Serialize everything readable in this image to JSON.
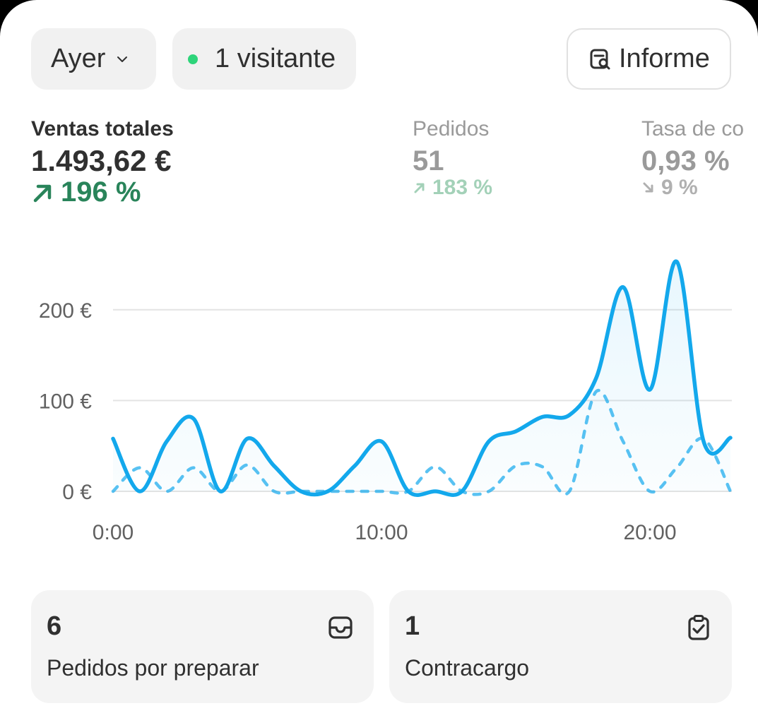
{
  "toolbar": {
    "date_filter_label": "Ayer",
    "visitors_label": "1 visitante",
    "report_label": "Informe"
  },
  "metrics": [
    {
      "label": "Ventas totales",
      "value": "1.493,62 €",
      "change": "196 %",
      "direction": "up"
    },
    {
      "label": "Pedidos",
      "value": "51",
      "change": "183 %",
      "direction": "up"
    },
    {
      "label": "Tasa de co",
      "value": "0,93 %",
      "change": "9 %",
      "direction": "down"
    }
  ],
  "colors": {
    "accent": "#13a8ec",
    "positive": "#29845a",
    "live_dot": "#2ed47a"
  },
  "chart_data": {
    "type": "line",
    "y_tick_labels": [
      "0 €",
      "100 €",
      "200 €"
    ],
    "yticks": [
      0,
      100,
      200
    ],
    "ylim": [
      0,
      260
    ],
    "x_tick_labels": [
      "0:00",
      "10:00",
      "20:00"
    ],
    "xticks": [
      0,
      10,
      20
    ],
    "xlim": [
      0,
      23
    ],
    "grid": true,
    "series": [
      {
        "style": "solid",
        "x": [
          0,
          1,
          2,
          3,
          4,
          5,
          6,
          7,
          8,
          9,
          10,
          11,
          12,
          13,
          14,
          15,
          16,
          17,
          18,
          19,
          20,
          21,
          22,
          23
        ],
        "values": [
          58,
          0,
          55,
          80,
          0,
          58,
          28,
          0,
          0,
          28,
          55,
          0,
          0,
          0,
          55,
          66,
          82,
          84,
          125,
          225,
          112,
          253,
          55,
          59
        ]
      },
      {
        "style": "dashed",
        "x": [
          0,
          1,
          2,
          3,
          4,
          5,
          6,
          7,
          8,
          9,
          10,
          11,
          12,
          13,
          14,
          15,
          16,
          17,
          18,
          19,
          20,
          21,
          22,
          23
        ],
        "values": [
          0,
          26,
          0,
          26,
          0,
          29,
          0,
          0,
          0,
          0,
          0,
          0,
          27,
          0,
          0,
          28,
          27,
          0,
          110,
          55,
          0,
          26,
          58,
          0
        ]
      }
    ]
  },
  "cards": [
    {
      "count": "6",
      "label": "Pedidos por preparar"
    },
    {
      "count": "1",
      "label": "Contracargo"
    }
  ]
}
